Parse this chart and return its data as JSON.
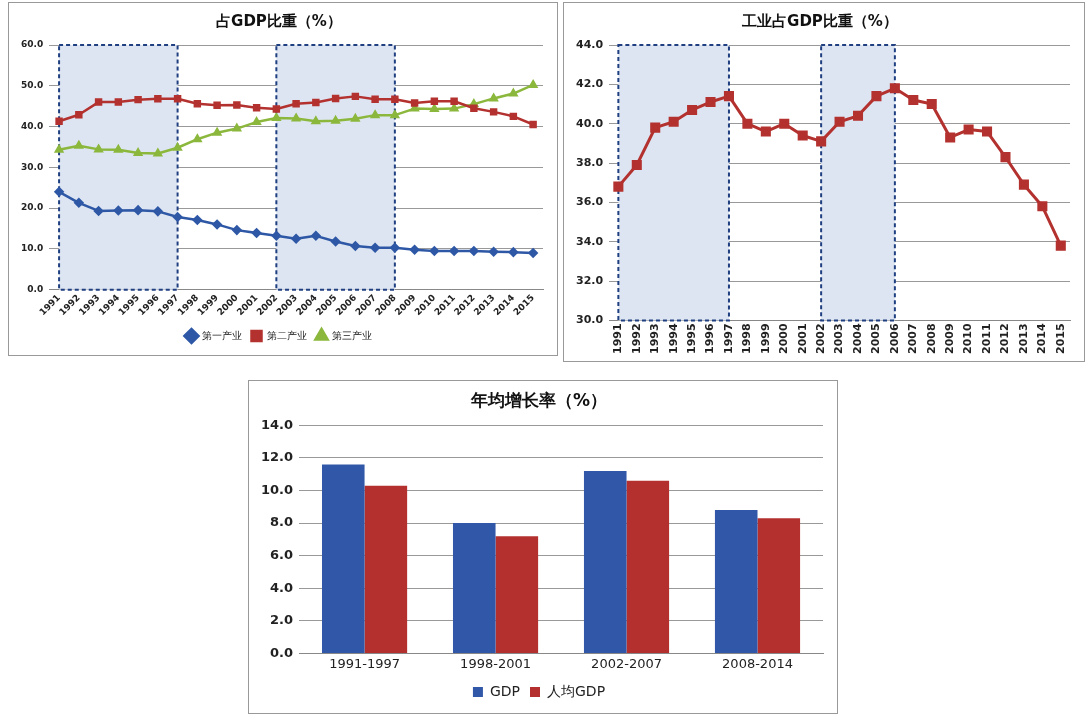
{
  "chart_data": [
    {
      "type": "line",
      "title": "占GDP比重（%）",
      "categories": [
        "1991",
        "1992",
        "1993",
        "1994",
        "1995",
        "1996",
        "1997",
        "1998",
        "1999",
        "2000",
        "2001",
        "2002",
        "2003",
        "2004",
        "2005",
        "2006",
        "2007",
        "2008",
        "2009",
        "2010",
        "2011",
        "2012",
        "2013",
        "2014",
        "2015"
      ],
      "series": [
        {
          "name": "第一产业",
          "color": "#2e58a6",
          "marker": "diamond",
          "values": [
            24.0,
            21.3,
            19.3,
            19.4,
            19.5,
            19.2,
            17.8,
            17.1,
            16.0,
            14.6,
            13.9,
            13.2,
            12.5,
            13.2,
            11.8,
            10.7,
            10.3,
            10.3,
            9.8,
            9.5,
            9.5,
            9.5,
            9.3,
            9.2,
            9.0
          ]
        },
        {
          "name": "第二产业",
          "color": "#b3312e",
          "marker": "square",
          "values": [
            41.3,
            42.9,
            46.0,
            46.0,
            46.6,
            46.8,
            46.8,
            45.6,
            45.2,
            45.3,
            44.6,
            44.3,
            45.6,
            45.9,
            46.9,
            47.4,
            46.7,
            46.7,
            45.8,
            46.2,
            46.2,
            44.5,
            43.6,
            42.5,
            40.5
          ]
        },
        {
          "name": "第三产业",
          "color": "#8bb83c",
          "marker": "triangle",
          "values": [
            34.3,
            35.3,
            34.4,
            34.3,
            33.5,
            33.4,
            34.8,
            36.9,
            38.5,
            39.5,
            41.1,
            42.1,
            42.0,
            41.3,
            41.4,
            41.9,
            42.8,
            42.8,
            44.4,
            44.3,
            44.4,
            45.5,
            46.9,
            48.1,
            50.2
          ]
        }
      ],
      "ylim": [
        0,
        60
      ],
      "yticks": [
        {
          "value": 0,
          "label": "0.0"
        },
        {
          "value": 10,
          "label": "10.0"
        },
        {
          "value": 20,
          "label": "20.0"
        },
        {
          "value": 30,
          "label": "30.0"
        },
        {
          "value": 40,
          "label": "40.0"
        },
        {
          "value": 50,
          "label": "50.0"
        },
        {
          "value": 60,
          "label": "60.0"
        }
      ],
      "grid": "y",
      "legend": "bottom",
      "bands": [
        {
          "axis": "x",
          "from": "1991",
          "to": "1997",
          "color": "#dde5f2"
        },
        {
          "axis": "x",
          "from": "2002",
          "to": "2008",
          "color": "#dde5f2"
        }
      ]
    },
    {
      "type": "line",
      "title": "工业占GDP比重（%）",
      "categories": [
        "1991",
        "1992",
        "1993",
        "1994",
        "1995",
        "1996",
        "1997",
        "1998",
        "1999",
        "2000",
        "2001",
        "2002",
        "2003",
        "2004",
        "2005",
        "2006",
        "2007",
        "2008",
        "2009",
        "2010",
        "2011",
        "2012",
        "2013",
        "2014",
        "2015"
      ],
      "series": [
        {
          "color": "#b3312e",
          "marker": "square",
          "values": [
            36.8,
            37.9,
            39.8,
            40.1,
            40.7,
            41.1,
            41.4,
            40.0,
            39.6,
            40.0,
            39.4,
            39.1,
            40.1,
            40.4,
            41.4,
            41.8,
            41.2,
            41.0,
            39.3,
            39.7,
            39.6,
            38.3,
            36.9,
            35.8,
            33.8
          ]
        }
      ],
      "ylim": [
        30,
        44
      ],
      "yticks": [
        {
          "value": 30,
          "label": "30.0"
        },
        {
          "value": 32,
          "label": "32.0"
        },
        {
          "value": 34,
          "label": "34.0"
        },
        {
          "value": 36,
          "label": "36.0"
        },
        {
          "value": 38,
          "label": "38.0"
        },
        {
          "value": 40,
          "label": "40.0"
        },
        {
          "value": 42,
          "label": "42.0"
        },
        {
          "value": 44,
          "label": "44.0"
        }
      ],
      "grid": "y",
      "legend": false,
      "bands": [
        {
          "axis": "x",
          "from": "1991",
          "to": "1997",
          "color": "#dde5f2"
        },
        {
          "axis": "x",
          "from": "2002",
          "to": "2006",
          "color": "#dde5f2"
        }
      ]
    },
    {
      "type": "bar",
      "title": "年均增长率（%）",
      "categories": [
        "1991-1997",
        "1998-2001",
        "2002-2007",
        "2008-2014"
      ],
      "series": [
        {
          "name": "GDP",
          "color": "#3158a8",
          "values": [
            11.6,
            8.0,
            11.2,
            8.8
          ]
        },
        {
          "name": "人均GDP",
          "color": "#b3302f",
          "values": [
            10.3,
            7.2,
            10.6,
            8.3
          ]
        }
      ],
      "ylim": [
        0,
        14
      ],
      "yticks": [
        {
          "value": 0,
          "label": "0.0"
        },
        {
          "value": 2,
          "label": "2.0"
        },
        {
          "value": 4,
          "label": "4.0"
        },
        {
          "value": 6,
          "label": "6.0"
        },
        {
          "value": 8,
          "label": "8.0"
        },
        {
          "value": 10,
          "label": "10.0"
        },
        {
          "value": 12,
          "label": "12.0"
        },
        {
          "value": 14,
          "label": "14.0"
        }
      ],
      "grid": "y",
      "legend": "bottom"
    }
  ]
}
